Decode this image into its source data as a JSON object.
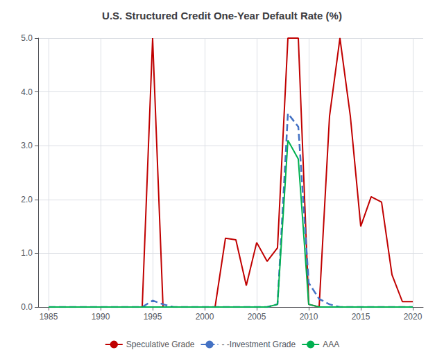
{
  "chart_data": {
    "type": "line",
    "title": "U.S. Structured Credit One-Year Default Rate (%)",
    "x": [
      1985,
      1986,
      1987,
      1988,
      1989,
      1990,
      1991,
      1992,
      1993,
      1994,
      1995,
      1996,
      1997,
      1998,
      1999,
      2000,
      2001,
      2002,
      2003,
      2004,
      2005,
      2006,
      2007,
      2008,
      2009,
      2010,
      2011,
      2012,
      2013,
      2014,
      2015,
      2016,
      2017,
      2018,
      2019,
      2020
    ],
    "series": [
      {
        "name": "Speculative Grade",
        "color": "#C00000",
        "line_style": "solid",
        "values": [
          0.0,
          0.0,
          0.0,
          0.0,
          0.0,
          0.0,
          0.0,
          0.0,
          0.0,
          0.0,
          5.0,
          0.0,
          0.0,
          0.0,
          0.0,
          0.0,
          0.0,
          1.28,
          1.25,
          0.4,
          1.2,
          0.85,
          1.1,
          5.0,
          5.0,
          0.05,
          0.0,
          3.55,
          5.0,
          3.55,
          1.5,
          2.05,
          1.95,
          0.6,
          0.1,
          0.1
        ]
      },
      {
        "name": "- -Investment Grade",
        "color": "#4472C4",
        "line_style": "dashed",
        "values": [
          0.0,
          0.0,
          0.0,
          0.0,
          0.0,
          0.0,
          0.0,
          0.0,
          0.0,
          0.0,
          0.12,
          0.05,
          0.0,
          0.0,
          0.0,
          0.0,
          0.0,
          0.0,
          0.0,
          0.0,
          0.0,
          0.0,
          0.05,
          3.6,
          3.35,
          0.45,
          0.15,
          0.05,
          0.0,
          0.0,
          0.0,
          0.0,
          0.0,
          0.0,
          0.0,
          0.0
        ]
      },
      {
        "name": "AAA",
        "color": "#00B050",
        "line_style": "solid",
        "values": [
          0.0,
          0.0,
          0.0,
          0.0,
          0.0,
          0.0,
          0.0,
          0.0,
          0.0,
          0.0,
          0.0,
          0.0,
          0.0,
          0.0,
          0.0,
          0.0,
          0.0,
          0.0,
          0.0,
          0.0,
          0.0,
          0.0,
          0.05,
          3.1,
          2.75,
          0.05,
          0.0,
          0.0,
          0.0,
          0.0,
          0.0,
          0.0,
          0.0,
          0.0,
          0.0,
          0.0
        ]
      }
    ],
    "xlim": [
      1984,
      2021
    ],
    "xticks": [
      1985,
      1990,
      1995,
      2000,
      2005,
      2010,
      2015,
      2020
    ],
    "ylim": [
      0,
      5.0
    ],
    "yticks": [
      {
        "value": 0.0,
        "label": "0.0"
      },
      {
        "value": 1.0,
        "label": "1.0"
      },
      {
        "value": 2.0,
        "label": "2.0"
      },
      {
        "value": 3.0,
        "label": "3.0"
      },
      {
        "value": 4.0,
        "label": "4.0"
      },
      {
        "value": 5.0,
        "label": "5.0"
      }
    ],
    "grid": true,
    "legend": "bottom"
  }
}
